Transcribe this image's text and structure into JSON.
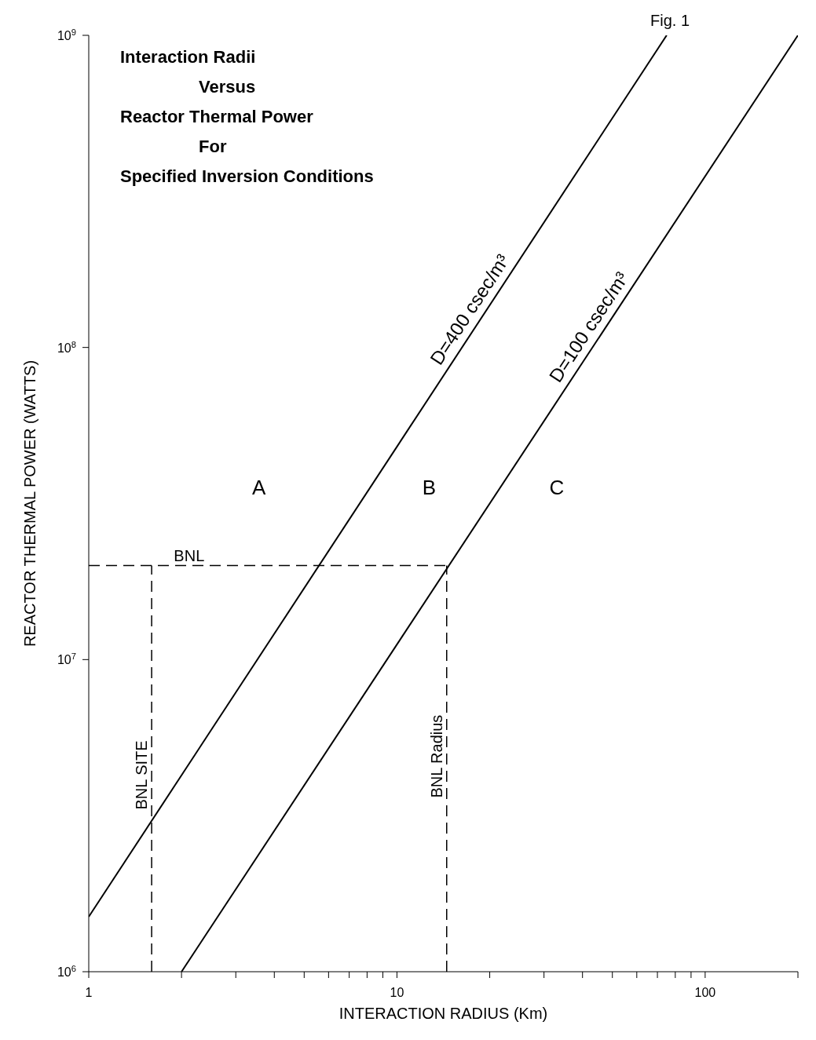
{
  "chart_data": {
    "type": "line",
    "title": "Interaction Radii\nVersus\nReactor Thermal Power\nFor\nSpecified Inversion Conditions",
    "xlabel": "INTERACTION  RADIUS  (Km)",
    "ylabel": "REACTOR  THERMAL  POWER  (WATTS)",
    "log": "xy",
    "xlim": [
      1,
      200
    ],
    "ylim": [
      1000000,
      1000000000
    ],
    "xticks": [
      1,
      {
        "value": 2,
        "label": null
      },
      {
        "value": 3,
        "label": null
      },
      {
        "value": 4,
        "label": null
      },
      {
        "value": 5,
        "label": null
      },
      {
        "value": 6,
        "label": null
      },
      {
        "value": 7,
        "label": null
      },
      {
        "value": 8,
        "label": null
      },
      {
        "value": 9,
        "label": null
      },
      10,
      {
        "value": 20,
        "label": null
      },
      {
        "value": 30,
        "label": null
      },
      {
        "value": 40,
        "label": null
      },
      {
        "value": 50,
        "label": null
      },
      {
        "value": 60,
        "label": null
      },
      {
        "value": 70,
        "label": null
      },
      {
        "value": 80,
        "label": null
      },
      {
        "value": 90,
        "label": null
      },
      100,
      {
        "value": 200,
        "label": null
      }
    ],
    "yticks": [
      {
        "value": 1000000,
        "label": "10$^{6}$"
      },
      {
        "value": 10000000,
        "label": "10$^{7}$"
      },
      {
        "value": 100000000,
        "label": "10$^{8}$"
      },
      {
        "value": 1000000000,
        "label": "10$^{9}$"
      }
    ],
    "series": [
      {
        "name": "D=400 csec/m³",
        "color": "#000000",
        "x": [
          1,
          75
        ],
        "values": [
          1500000,
          1000000000
        ]
      },
      {
        "name": "D=100 csec/m³",
        "color": "#000000",
        "x": [
          2,
          200
        ],
        "values": [
          1000000,
          1000000000
        ]
      }
    ],
    "ref_lines": [
      {
        "axis": "y",
        "value": 20000000,
        "label": "BNL",
        "line_style": "dashed"
      },
      {
        "axis": "x",
        "value": 1.6,
        "label": "BNL SITE",
        "line_style": "dashed"
      },
      {
        "axis": "x",
        "value": 14.5,
        "label": "BNL Radius",
        "line_style": "dashed"
      }
    ],
    "annotations": [
      "Fig. 1",
      "A",
      "B",
      "C"
    ],
    "marker": "none",
    "line_style": "solid"
  }
}
